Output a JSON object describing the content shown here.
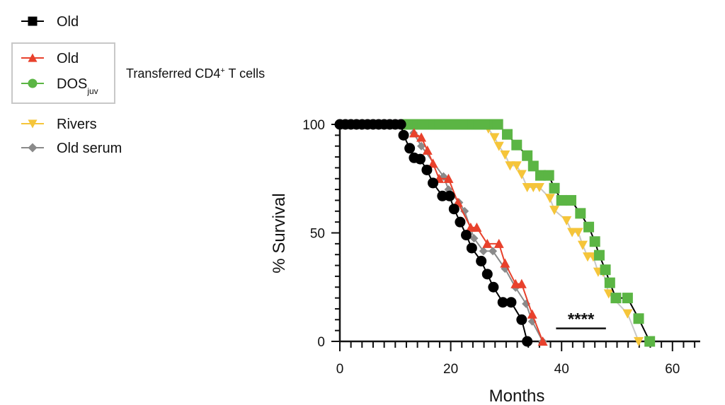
{
  "chart_data": {
    "type": "line",
    "title": "",
    "xlabel": "Months",
    "ylabel": "% Survival",
    "xlim": [
      0,
      65
    ],
    "ylim": [
      0,
      100
    ],
    "x_ticks": [
      0,
      20,
      40,
      60
    ],
    "y_ticks": [
      0,
      50,
      100
    ],
    "x_minor_step": 2,
    "y_minor_step": 5,
    "grid": false,
    "legend_placement": "top-left",
    "legend_group_label": "Transferred CD4",
    "legend_group_label_sup": "+",
    "legend_group_label_tail": " T cells",
    "annotation": {
      "text": "****",
      "x_range": [
        39,
        48
      ],
      "y": 6
    },
    "series": [
      {
        "name": "Old",
        "sub": "",
        "color": "#000000",
        "line": "#000000",
        "marker": "circle",
        "legend_marker": "square",
        "points": [
          [
            0,
            100
          ],
          [
            1,
            100
          ],
          [
            2,
            100
          ],
          [
            3,
            100
          ],
          [
            4,
            100
          ],
          [
            5,
            100
          ],
          [
            6,
            100
          ],
          [
            7,
            100
          ],
          [
            8,
            100
          ],
          [
            9,
            100
          ],
          [
            10,
            100
          ],
          [
            11,
            100
          ],
          [
            11.5,
            95
          ],
          [
            12.6,
            89
          ],
          [
            13.4,
            84.6
          ],
          [
            14.5,
            84
          ],
          [
            15.7,
            79
          ],
          [
            16.8,
            73
          ],
          [
            18.5,
            67
          ],
          [
            19.8,
            67
          ],
          [
            20.6,
            61
          ],
          [
            21.7,
            55
          ],
          [
            22.8,
            49
          ],
          [
            23.8,
            43
          ],
          [
            25.5,
            37
          ],
          [
            26.6,
            31
          ],
          [
            27.7,
            25
          ],
          [
            29.4,
            18
          ],
          [
            30.9,
            18
          ],
          [
            32.8,
            10
          ],
          [
            33.8,
            0
          ]
        ]
      },
      {
        "name": "Old",
        "sub": "",
        "color": "#e8412c",
        "line": "#e8412c",
        "marker": "triangle",
        "legend_marker": "triangle",
        "points": [
          [
            13.4,
            96
          ],
          [
            14.7,
            94
          ],
          [
            15.8,
            88
          ],
          [
            16.8,
            82
          ],
          [
            17.9,
            75
          ],
          [
            19.6,
            75
          ],
          [
            21.3,
            64
          ],
          [
            23.6,
            52.5
          ],
          [
            24.7,
            52.5
          ],
          [
            26.6,
            45
          ],
          [
            28.7,
            45
          ],
          [
            29.8,
            36
          ],
          [
            31.7,
            26.5
          ],
          [
            32.8,
            26.5
          ],
          [
            34.7,
            12.5
          ],
          [
            36.6,
            0
          ]
        ]
      },
      {
        "name": "DOS",
        "sub": "juv",
        "color": "#5bb544",
        "line": "#000000",
        "marker": "square",
        "legend_marker": "circle",
        "points": [
          [
            12,
            100
          ],
          [
            13,
            100
          ],
          [
            14,
            100
          ],
          [
            15,
            100
          ],
          [
            16,
            100
          ],
          [
            17,
            100
          ],
          [
            18,
            100
          ],
          [
            19,
            100
          ],
          [
            20,
            100
          ],
          [
            21,
            100
          ],
          [
            22,
            100
          ],
          [
            23,
            100
          ],
          [
            24,
            100
          ],
          [
            25,
            100
          ],
          [
            26,
            100
          ],
          [
            27,
            100
          ],
          [
            28,
            100
          ],
          [
            28.5,
            100
          ],
          [
            30.2,
            95.4
          ],
          [
            31.9,
            90.5
          ],
          [
            33.8,
            85.6
          ],
          [
            34.9,
            80.8
          ],
          [
            36.2,
            76.5
          ],
          [
            37.7,
            76.5
          ],
          [
            38.7,
            70.6
          ],
          [
            40,
            65
          ],
          [
            41.7,
            65
          ],
          [
            43.4,
            59
          ],
          [
            44.9,
            52.7
          ],
          [
            46,
            46
          ],
          [
            46.8,
            39.7
          ],
          [
            47.9,
            33
          ],
          [
            48.7,
            27
          ],
          [
            49.8,
            20
          ],
          [
            51.9,
            20
          ],
          [
            53.9,
            10.5
          ],
          [
            55.9,
            0
          ]
        ]
      },
      {
        "name": "Rivers",
        "sub": "",
        "color": "#f5c53a",
        "line": "#c8c8c8",
        "marker": "triangle-down",
        "legend_marker": "triangle-down",
        "points": [
          [
            26.8,
            98
          ],
          [
            27.9,
            94
          ],
          [
            28.7,
            90
          ],
          [
            29.8,
            86
          ],
          [
            30.7,
            81
          ],
          [
            31.9,
            81
          ],
          [
            32.8,
            77
          ],
          [
            33.8,
            71
          ],
          [
            34.9,
            71
          ],
          [
            36,
            71
          ],
          [
            37.9,
            66
          ],
          [
            38.7,
            60.5
          ],
          [
            40.9,
            55.7
          ],
          [
            41.9,
            50.3
          ],
          [
            43,
            50.3
          ],
          [
            43.8,
            44.4
          ],
          [
            44.7,
            39
          ],
          [
            45.7,
            39
          ],
          [
            46.6,
            32
          ],
          [
            47.5,
            32
          ],
          [
            48.5,
            22
          ],
          [
            51.9,
            12.8
          ],
          [
            53.9,
            0
          ]
        ]
      },
      {
        "name": "Old serum",
        "sub": "",
        "color": "#8a8a8a",
        "line": "#8a8a8a",
        "marker": "diamond",
        "legend_marker": "diamond",
        "points": [
          [
            13.3,
            96
          ],
          [
            14.7,
            90
          ],
          [
            18.7,
            76
          ],
          [
            19.6,
            70
          ],
          [
            21.5,
            64
          ],
          [
            22.5,
            60
          ],
          [
            24.2,
            47.5
          ],
          [
            25.9,
            41.6
          ],
          [
            27.6,
            41.6
          ],
          [
            29.8,
            33.5
          ],
          [
            31.7,
            24.8
          ],
          [
            33.6,
            17.3
          ],
          [
            34.7,
            9.2
          ],
          [
            36.6,
            0
          ]
        ]
      }
    ]
  }
}
